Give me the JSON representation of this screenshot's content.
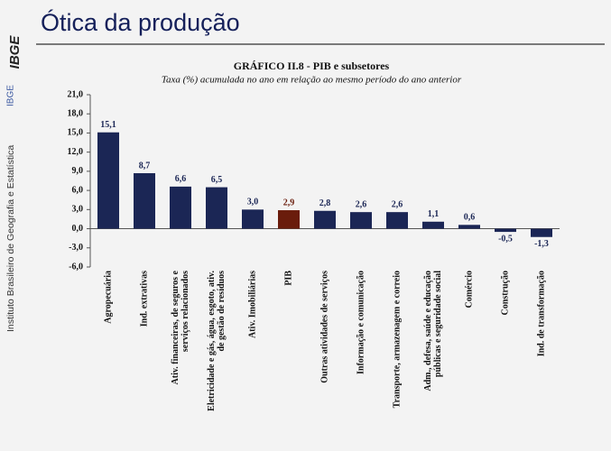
{
  "header": {
    "title": "Ótica da produção"
  },
  "sidebar": {
    "logo": "IBGE",
    "institute": "Instituto Brasileiro de Geografia e Estatística",
    "acronym": "IBGE"
  },
  "chart_data": {
    "type": "bar",
    "title": "GRÁFICO II.8 - PIB e subsetores",
    "subtitle": "Taxa (%) acumulada no ano em relação ao  mesmo período do ano anterior",
    "categories": [
      [
        "Agropecuária"
      ],
      [
        "Ind. extrativas"
      ],
      [
        "Ativ. financeiras, de seguros e",
        "serviços relacionados"
      ],
      [
        "Eletricidade e gás, água, esgoto, ativ.",
        "de gestão de resíduos"
      ],
      [
        "Ativ. Imobiliárias"
      ],
      [
        "PIB"
      ],
      [
        "Outras atividades de serviços"
      ],
      [
        "Informação e comunicação"
      ],
      [
        "Transporte, armazenagem e correio"
      ],
      [
        "Adm., defesa, saúde e educação",
        "públicas e seguridade social"
      ],
      [
        "Comércio"
      ],
      [
        "Construção"
      ],
      [
        "Ind. de transformação"
      ]
    ],
    "values": [
      15.1,
      8.7,
      6.6,
      6.5,
      3.0,
      2.9,
      2.8,
      2.6,
      2.6,
      1.1,
      0.6,
      -0.5,
      -1.3
    ],
    "value_labels": [
      "15,1",
      "8,7",
      "6,6",
      "6,5",
      "3,0",
      "2,9",
      "2,8",
      "2,6",
      "2,6",
      "1,1",
      "0,6",
      "-0,5",
      "-1,3"
    ],
    "colors": [
      "#1b2655",
      "#1b2655",
      "#1b2655",
      "#1b2655",
      "#1b2655",
      "#6a1c0c",
      "#1b2655",
      "#1b2655",
      "#1b2655",
      "#1b2655",
      "#1b2655",
      "#1b2655",
      "#1b2655"
    ],
    "ylim": [
      -6,
      21
    ],
    "yticks": [
      {
        "value": -6,
        "label": "-6,0"
      },
      {
        "value": -3,
        "label": "-3,0"
      },
      {
        "value": 0,
        "label": "0,0"
      },
      {
        "value": 3,
        "label": "3,0"
      },
      {
        "value": 6,
        "label": "6,0"
      },
      {
        "value": 9,
        "label": "9,0"
      },
      {
        "value": 12,
        "label": "12,0"
      },
      {
        "value": 15,
        "label": "15,0"
      },
      {
        "value": 18,
        "label": "18,0"
      },
      {
        "value": 21,
        "label": "21,0"
      }
    ],
    "grid": false
  }
}
